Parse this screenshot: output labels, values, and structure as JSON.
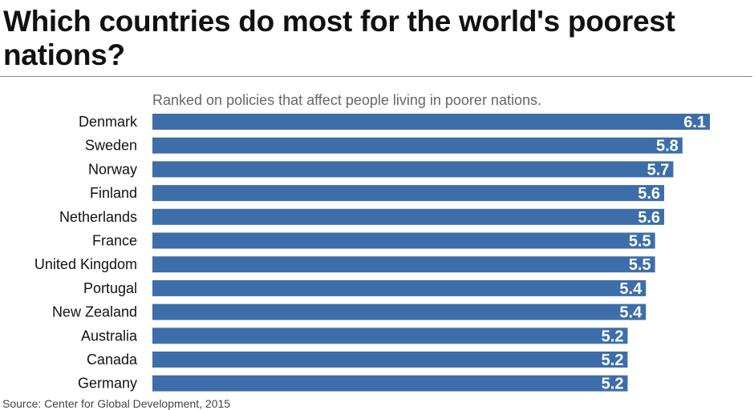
{
  "header": {
    "title": "Which countries do most for the world's poorest nations?"
  },
  "colors": {
    "bar": "#3e6ea9",
    "bar_label": "#ffffff",
    "category_label": "#111111",
    "subtitle": "#666666"
  },
  "footer": {
    "source": "Source: Center for Global Development, 2015"
  },
  "chart_data": {
    "type": "bar",
    "orientation": "horizontal",
    "title": "Which countries do most for the world's poorest nations?",
    "subtitle": "Ranked on policies that affect people living in poorer nations.",
    "categories": [
      "Denmark",
      "Sweden",
      "Norway",
      "Finland",
      "Netherlands",
      "France",
      "United Kingdom",
      "Portugal",
      "New Zealand",
      "Australia",
      "Canada",
      "Germany"
    ],
    "values": [
      6.1,
      5.8,
      5.7,
      5.6,
      5.6,
      5.5,
      5.5,
      5.4,
      5.4,
      5.2,
      5.2,
      5.2
    ],
    "value_labels": [
      "6.1",
      "5.8",
      "5.7",
      "5.6",
      "5.6",
      "5.5",
      "5.5",
      "5.4",
      "5.4",
      "5.2",
      "5.2",
      "5.2"
    ],
    "xlabel": "",
    "ylabel": "",
    "xlim": [
      0,
      6.1
    ],
    "grid": false,
    "legend": "none",
    "source": "Source: Center for Global Development, 2015"
  }
}
